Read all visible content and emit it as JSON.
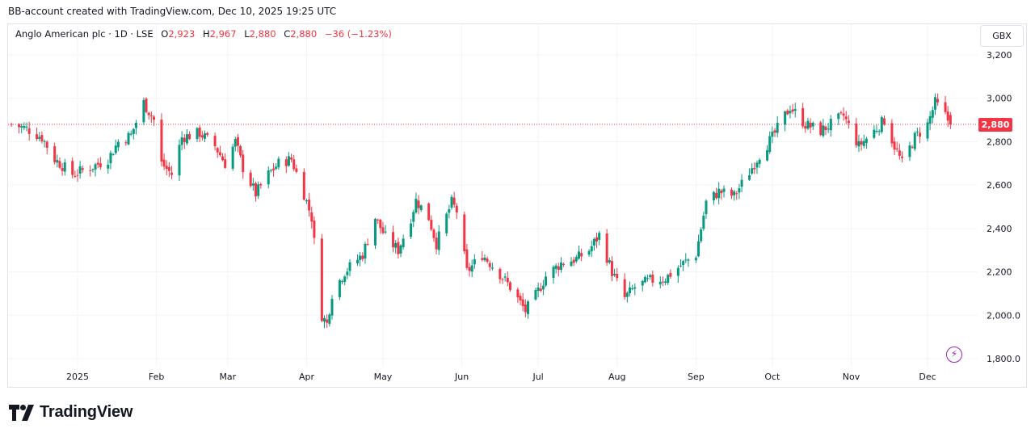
{
  "header": {
    "watermark_text": "BB-account created with TradingView.com, Dec 10, 2025 19:25 UTC"
  },
  "legend": {
    "symbol": "Anglo American plc · 1D · LSE",
    "o_label": "O",
    "o_value": "2,923",
    "h_label": "H",
    "h_value": "2,967",
    "l_label": "L",
    "l_value": "2,880",
    "c_label": "C",
    "c_value": "2,880",
    "change": "−36 (−1.23%)"
  },
  "currency": "GBX",
  "last_price_label": "2,880",
  "footer": {
    "brand": "TradingView",
    "logo_icon": "tradingview-logo-icon"
  },
  "colors": {
    "up": "#089981",
    "down": "#f23645",
    "grid": "#f0f3fa",
    "accent": "#9c27b0"
  },
  "chart_data": {
    "type": "candlestick",
    "ylim": [
      1800,
      3250
    ],
    "y_ticks": [
      1800,
      2000,
      2200,
      2400,
      2600,
      2800,
      3000,
      3200
    ],
    "y_tick_labels": [
      "1,800.0",
      "2,000.0",
      "2,200",
      "2,400",
      "2,600",
      "2,800",
      "3,000",
      "3,200"
    ],
    "x_tick_labels": [
      {
        "label": "2025",
        "date": "2025-01-01"
      },
      {
        "label": "Feb",
        "date": "2025-02-01"
      },
      {
        "label": "Mar",
        "date": "2025-03-01"
      },
      {
        "label": "Apr",
        "date": "2025-04-01"
      },
      {
        "label": "May",
        "date": "2025-05-01"
      },
      {
        "label": "Jun",
        "date": "2025-06-01"
      },
      {
        "label": "Jul",
        "date": "2025-07-01"
      },
      {
        "label": "Aug",
        "date": "2025-08-01"
      },
      {
        "label": "Sep",
        "date": "2025-09-01"
      },
      {
        "label": "Oct",
        "date": "2025-10-01"
      },
      {
        "label": "Nov",
        "date": "2025-11-01"
      },
      {
        "label": "Dec",
        "date": "2025-12-01"
      }
    ],
    "last_price": 2880,
    "close_anchors": [
      [
        "2024-12-06",
        2880
      ],
      [
        "2024-12-12",
        2860
      ],
      [
        "2024-12-18",
        2820
      ],
      [
        "2024-12-23",
        2720
      ],
      [
        "2024-12-30",
        2650
      ],
      [
        "2025-01-06",
        2680
      ],
      [
        "2025-01-13",
        2720
      ],
      [
        "2025-01-17",
        2800
      ],
      [
        "2025-01-22",
        2830
      ],
      [
        "2025-01-27",
        2980
      ],
      [
        "2025-01-31",
        2900
      ],
      [
        "2025-02-03",
        2700
      ],
      [
        "2025-02-07",
        2650
      ],
      [
        "2025-02-11",
        2820
      ],
      [
        "2025-02-18",
        2840
      ],
      [
        "2025-02-24",
        2780
      ],
      [
        "2025-02-28",
        2700
      ],
      [
        "2025-03-04",
        2800
      ],
      [
        "2025-03-07",
        2680
      ],
      [
        "2025-03-12",
        2560
      ],
      [
        "2025-03-17",
        2650
      ],
      [
        "2025-03-21",
        2700
      ],
      [
        "2025-03-26",
        2720
      ],
      [
        "2025-03-31",
        2560
      ],
      [
        "2025-04-03",
        2450
      ],
      [
        "2025-04-07",
        2000
      ],
      [
        "2025-04-09",
        1960
      ],
      [
        "2025-04-11",
        2100
      ],
      [
        "2025-04-16",
        2200
      ],
      [
        "2025-04-23",
        2280
      ],
      [
        "2025-04-28",
        2450
      ],
      [
        "2025-05-02",
        2360
      ],
      [
        "2025-05-07",
        2300
      ],
      [
        "2025-05-12",
        2450
      ],
      [
        "2025-05-14",
        2530
      ],
      [
        "2025-05-19",
        2450
      ],
      [
        "2025-05-22",
        2330
      ],
      [
        "2025-05-28",
        2520
      ],
      [
        "2025-05-30",
        2480
      ],
      [
        "2025-06-03",
        2200
      ],
      [
        "2025-06-09",
        2280
      ],
      [
        "2025-06-16",
        2190
      ],
      [
        "2025-06-20",
        2130
      ],
      [
        "2025-06-26",
        2020
      ],
      [
        "2025-06-30",
        2090
      ],
      [
        "2025-07-04",
        2180
      ],
      [
        "2025-07-10",
        2240
      ],
      [
        "2025-07-16",
        2260
      ],
      [
        "2025-07-21",
        2300
      ],
      [
        "2025-07-25",
        2370
      ],
      [
        "2025-07-30",
        2200
      ],
      [
        "2025-08-04",
        2080
      ],
      [
        "2025-08-08",
        2130
      ],
      [
        "2025-08-14",
        2160
      ],
      [
        "2025-08-20",
        2170
      ],
      [
        "2025-08-26",
        2230
      ],
      [
        "2025-09-01",
        2280
      ],
      [
        "2025-09-05",
        2520
      ],
      [
        "2025-09-10",
        2570
      ],
      [
        "2025-09-16",
        2550
      ],
      [
        "2025-09-22",
        2660
      ],
      [
        "2025-09-26",
        2740
      ],
      [
        "2025-10-01",
        2820
      ],
      [
        "2025-10-08",
        2960
      ],
      [
        "2025-10-14",
        2880
      ],
      [
        "2025-10-20",
        2850
      ],
      [
        "2025-10-24",
        2880
      ],
      [
        "2025-10-29",
        2920
      ],
      [
        "2025-11-04",
        2780
      ],
      [
        "2025-11-10",
        2850
      ],
      [
        "2025-11-14",
        2900
      ],
      [
        "2025-11-18",
        2780
      ],
      [
        "2025-11-21",
        2700
      ],
      [
        "2025-11-26",
        2820
      ],
      [
        "2025-12-01",
        2880
      ],
      [
        "2025-12-04",
        2980
      ],
      [
        "2025-12-08",
        2920
      ],
      [
        "2025-12-10",
        2880
      ]
    ]
  }
}
